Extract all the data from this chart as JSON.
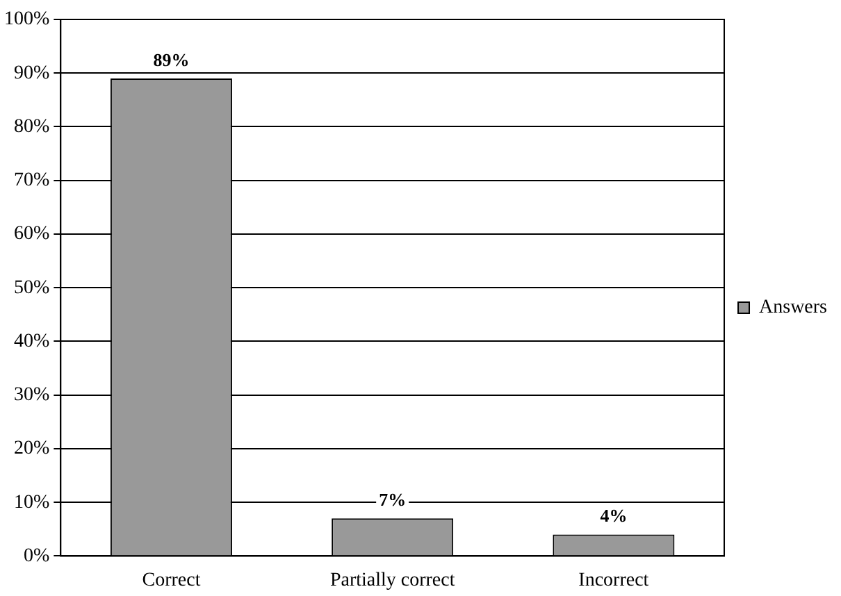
{
  "chart_data": {
    "type": "bar",
    "categories": [
      "Correct",
      "Partially correct",
      "Incorrect"
    ],
    "series": [
      {
        "name": "Answers",
        "color": "#999999",
        "values": [
          89,
          7,
          4
        ],
        "value_labels": [
          "89%",
          "7%",
          "4%"
        ]
      }
    ],
    "ylim": [
      0,
      100
    ],
    "yticks": [
      {
        "value": 0,
        "label": "0%"
      },
      {
        "value": 10,
        "label": "10%"
      },
      {
        "value": 20,
        "label": "20%"
      },
      {
        "value": 30,
        "label": "30%"
      },
      {
        "value": 40,
        "label": "40%"
      },
      {
        "value": 50,
        "label": "50%"
      },
      {
        "value": 60,
        "label": "60%"
      },
      {
        "value": 70,
        "label": "70%"
      },
      {
        "value": 80,
        "label": "80%"
      },
      {
        "value": 90,
        "label": "90%"
      },
      {
        "value": 100,
        "label": "100%"
      }
    ],
    "grid": "y",
    "legend": "right"
  }
}
